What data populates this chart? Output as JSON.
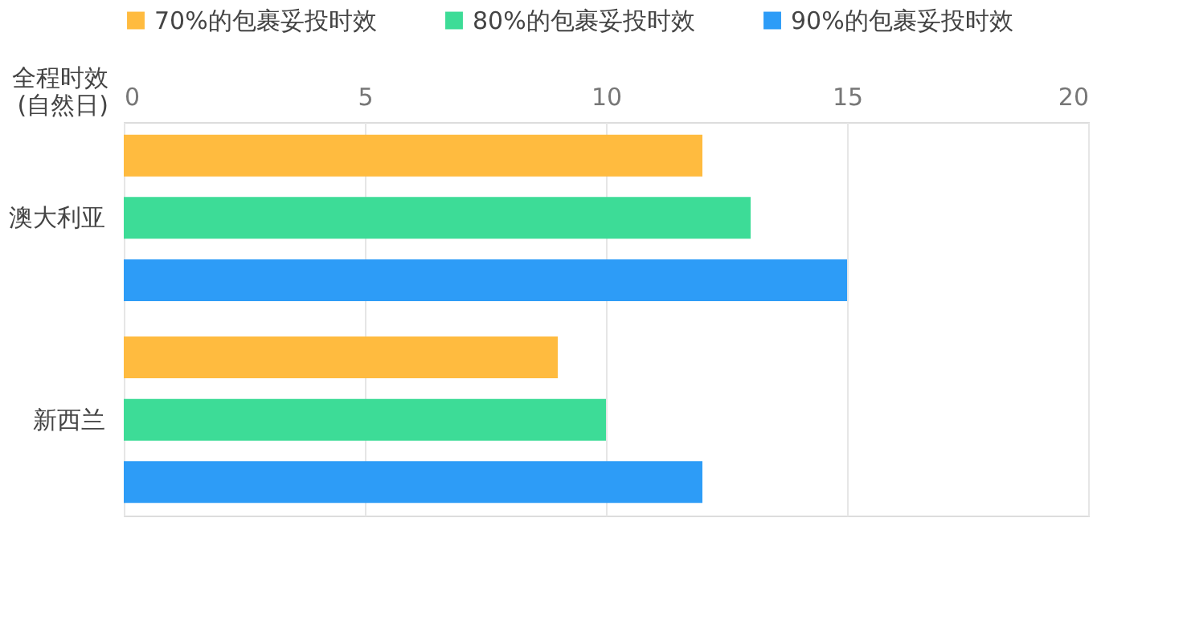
{
  "chart_data": {
    "type": "bar",
    "orientation": "horizontal",
    "categories": [
      "澳大利亚",
      "新西兰"
    ],
    "series": [
      {
        "name": "70%的包裹妥投时效",
        "color": "#ffbb3f",
        "values": [
          12,
          9
        ]
      },
      {
        "name": "80%的包裹妥投时效",
        "color": "#3ddc97",
        "values": [
          13,
          10
        ]
      },
      {
        "name": "90%的包裹妥投时效",
        "color": "#2d9cf7",
        "values": [
          15,
          12
        ]
      }
    ],
    "xlabel": "全程时效\n(自然日)",
    "xlim": [
      0,
      20
    ],
    "xticks": [
      0,
      5,
      10,
      15,
      20
    ],
    "grid": "x",
    "legend": "top"
  }
}
